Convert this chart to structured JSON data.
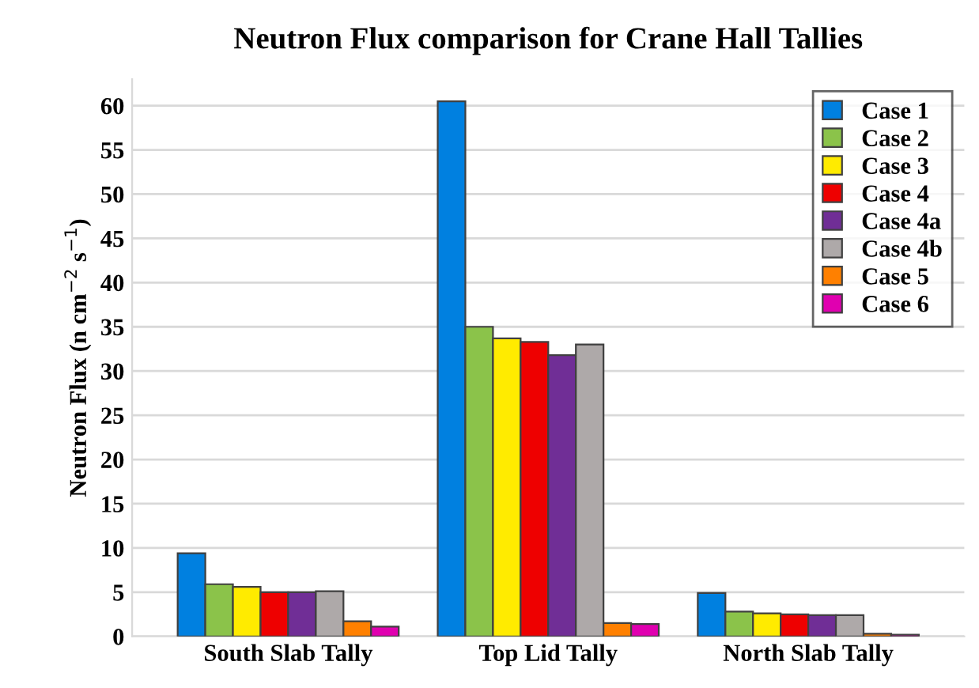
{
  "chart_data": {
    "type": "bar",
    "title": "Neutron Flux comparison for Crane Hall Tallies",
    "ylabel": "Neutron Flux (n cm$^{−2}$ s$^{−1}$)",
    "categories": [
      "South Slab Tally",
      "Top Lid Tally",
      "North Slab Tally"
    ],
    "series": [
      {
        "name": "Case 1",
        "color": "#0080e0",
        "values": [
          9.4,
          60.5,
          4.9
        ]
      },
      {
        "name": "Case 2",
        "color": "#8bc34a",
        "values": [
          5.9,
          35.0,
          2.8
        ]
      },
      {
        "name": "Case 3",
        "color": "#ffeb00",
        "values": [
          5.6,
          33.7,
          2.6
        ]
      },
      {
        "name": "Case 4",
        "color": "#ee0000",
        "values": [
          5.0,
          33.3,
          2.5
        ]
      },
      {
        "name": "Case 4a",
        "color": "#702e96",
        "values": [
          5.0,
          31.8,
          2.4
        ]
      },
      {
        "name": "Case 4b",
        "color": "#aea9a9",
        "values": [
          5.1,
          33.0,
          2.4
        ]
      },
      {
        "name": "Case 5",
        "color": "#ff8000",
        "values": [
          1.7,
          1.5,
          0.3
        ]
      },
      {
        "name": "Case 6",
        "color": "#e000b0",
        "values": [
          1.1,
          1.4,
          0.2
        ]
      }
    ],
    "ylim": [
      0,
      63
    ],
    "yticks": [
      0,
      5,
      10,
      15,
      20,
      25,
      30,
      35,
      40,
      45,
      50,
      55,
      60
    ],
    "grid": "y",
    "legend": "top right"
  }
}
